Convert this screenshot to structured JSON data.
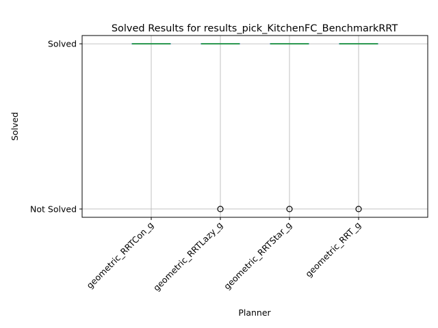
{
  "chart_data": {
    "type": "box",
    "title": "Solved Results for results_pick_KitchenFC_BenchmarkRRT",
    "xlabel": "Planner",
    "ylabel": "Solved",
    "categories": [
      "geometric_RRTCon_g",
      "geometric_RRTLazy_g",
      "geometric_RRTStar_g",
      "geometric_RRT_g"
    ],
    "y_tick_labels": [
      {
        "value": 0,
        "label": "Not Solved"
      },
      {
        "value": 1,
        "label": "Solved"
      }
    ],
    "ylim": [
      -0.05,
      1.05
    ],
    "grid": true,
    "boxes": [
      {
        "category": "geometric_RRTCon_g",
        "q1": 1,
        "median": 1,
        "q3": 1,
        "whisker_low": 1,
        "whisker_high": 1,
        "outliers": []
      },
      {
        "category": "geometric_RRTLazy_g",
        "q1": 1,
        "median": 1,
        "q3": 1,
        "whisker_low": 1,
        "whisker_high": 1,
        "outliers": [
          0
        ]
      },
      {
        "category": "geometric_RRTStar_g",
        "q1": 1,
        "median": 1,
        "q3": 1,
        "whisker_low": 1,
        "whisker_high": 1,
        "outliers": [
          0
        ]
      },
      {
        "category": "geometric_RRT_g",
        "q1": 1,
        "median": 1,
        "q3": 1,
        "whisker_low": 1,
        "whisker_high": 1,
        "outliers": [
          0
        ]
      }
    ],
    "colors": {
      "box": "#1f77b4",
      "median": "#2ca02c",
      "grid": "#b0b0b0",
      "outlier": "#000000"
    }
  }
}
